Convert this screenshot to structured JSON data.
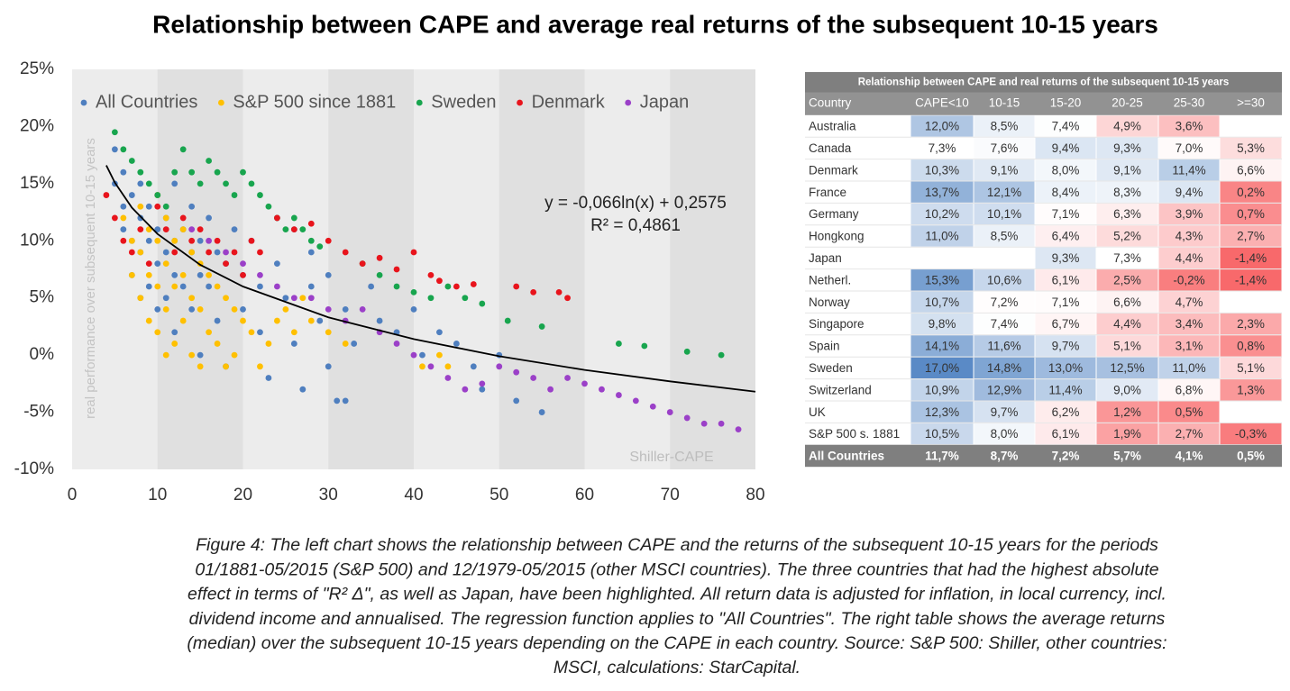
{
  "title": "Relationship between CAPE and average real returns of the subsequent 10-15 years",
  "chart_data": {
    "type": "scatter",
    "ylabel": "real performance over subsequent 10-15 years",
    "xlabel": "Shiller-CAPE",
    "xlim": [
      0,
      80
    ],
    "xticks": [
      0,
      10,
      20,
      30,
      40,
      50,
      60,
      70,
      80
    ],
    "ylim": [
      -10,
      25
    ],
    "yticks": [
      {
        "value": -10,
        "label": "-10%"
      },
      {
        "value": -5,
        "label": "-5%"
      },
      {
        "value": 0,
        "label": "0%"
      },
      {
        "value": 5,
        "label": "5%"
      },
      {
        "value": 10,
        "label": "10%"
      },
      {
        "value": 15,
        "label": "15%"
      },
      {
        "value": 20,
        "label": "20%"
      },
      {
        "value": 25,
        "label": "25%"
      }
    ],
    "grid": false,
    "legend": "top",
    "series": [
      {
        "name": "All Countries",
        "color": "#4f7fbf",
        "x": [
          5,
          5,
          6,
          6,
          6,
          7,
          7,
          7,
          8,
          8,
          8,
          8,
          9,
          9,
          9,
          10,
          10,
          10,
          10,
          11,
          11,
          11,
          12,
          12,
          12,
          12,
          13,
          13,
          14,
          14,
          14,
          15,
          15,
          15,
          16,
          16,
          17,
          17,
          18,
          18,
          19,
          20,
          20,
          21,
          22,
          22,
          23,
          24,
          25,
          26,
          27,
          28,
          29,
          30,
          30,
          31,
          32,
          33,
          35,
          36,
          38,
          40,
          41,
          43,
          45,
          47,
          48,
          50,
          52,
          55,
          32,
          26,
          24,
          28
        ],
        "values": [
          18,
          15,
          16,
          13,
          11,
          14,
          10,
          7,
          15,
          12,
          9,
          5,
          13,
          10,
          6,
          14,
          11,
          8,
          4,
          12,
          9,
          5,
          15,
          10,
          7,
          2,
          11,
          6,
          13,
          9,
          4,
          10,
          7,
          0,
          12,
          6,
          9,
          3,
          8,
          -1,
          11,
          7,
          4,
          10,
          6,
          2,
          -2,
          8,
          5,
          1,
          -3,
          6,
          3,
          7,
          -1,
          -4,
          4,
          1,
          6,
          3,
          2,
          4,
          0,
          2,
          1,
          -1,
          -3,
          0,
          -4,
          -5,
          -4,
          11,
          12,
          9
        ]
      },
      {
        "name": "S&P 500 since 1881",
        "color": "#ffc000",
        "x": [
          6,
          7,
          7,
          8,
          8,
          8,
          9,
          9,
          9,
          10,
          10,
          10,
          10,
          11,
          11,
          11,
          11,
          12,
          12,
          12,
          13,
          13,
          13,
          14,
          14,
          14,
          15,
          15,
          15,
          16,
          16,
          17,
          17,
          18,
          18,
          19,
          19,
          20,
          21,
          22,
          23,
          24,
          25,
          26,
          27,
          28,
          30,
          32,
          41,
          43,
          44
        ],
        "values": [
          12,
          10,
          7,
          13,
          9,
          5,
          11,
          7,
          3,
          14,
          10,
          6,
          2,
          12,
          8,
          4,
          0,
          10,
          6,
          1,
          11,
          7,
          3,
          9,
          5,
          0,
          8,
          4,
          -1,
          7,
          2,
          6,
          1,
          5,
          -1,
          4,
          0,
          3,
          2,
          -1,
          1,
          3,
          4,
          2,
          5,
          3,
          2,
          1,
          -1,
          0,
          -1
        ]
      },
      {
        "name": "Sweden",
        "color": "#18a54e",
        "x": [
          5,
          6,
          7,
          8,
          9,
          10,
          11,
          12,
          13,
          14,
          15,
          16,
          17,
          18,
          19,
          20,
          21,
          22,
          23,
          24,
          25,
          26,
          27,
          28,
          29,
          34,
          36,
          38,
          40,
          42,
          44,
          46,
          48,
          51,
          55,
          64,
          67,
          72,
          76
        ],
        "values": [
          19.5,
          18,
          17,
          16,
          15,
          14,
          13,
          16,
          18,
          16,
          15,
          17,
          16,
          15,
          14,
          16,
          15,
          14,
          13,
          12,
          11,
          12,
          11,
          10,
          9.5,
          8,
          7,
          6,
          5.5,
          5,
          6,
          5,
          4.5,
          3,
          2.5,
          1,
          0.8,
          0.3,
          0
        ]
      },
      {
        "name": "Denmark",
        "color": "#e8141c",
        "x": [
          4,
          5,
          6,
          7,
          8,
          9,
          10,
          11,
          12,
          13,
          14,
          15,
          16,
          17,
          18,
          19,
          20,
          21,
          22,
          24,
          26,
          28,
          30,
          32,
          34,
          36,
          38,
          40,
          42,
          43,
          45,
          47,
          52,
          54,
          57,
          58
        ],
        "values": [
          14,
          12,
          10,
          9,
          11,
          8,
          13,
          11,
          9,
          12,
          10,
          11,
          9,
          10,
          8,
          9,
          7,
          10,
          9,
          12,
          11,
          11.5,
          10,
          9,
          8,
          8.5,
          7.5,
          9,
          7,
          6.5,
          6,
          6.2,
          6,
          5.5,
          5.5,
          5
        ]
      },
      {
        "name": "Japan",
        "color": "#9b40c8",
        "x": [
          14,
          16,
          18,
          20,
          22,
          24,
          26,
          28,
          30,
          32,
          34,
          36,
          38,
          40,
          42,
          44,
          46,
          48,
          50,
          52,
          54,
          56,
          58,
          60,
          62,
          64,
          66,
          68,
          70,
          72,
          74,
          76,
          78
        ],
        "values": [
          11,
          10,
          9,
          8,
          7,
          6,
          5,
          5,
          4,
          3,
          4,
          2,
          1,
          0,
          -1,
          -2,
          -3,
          -2.5,
          -1,
          -1.5,
          -2,
          -3,
          -2,
          -2.5,
          -3,
          -3.5,
          -4,
          -4.5,
          -5,
          -5.5,
          -6,
          -6,
          -6.5
        ]
      }
    ],
    "trendline": {
      "color": "#000000",
      "label": "y = -0,066ln(x) + 0,2575",
      "r2": "R² = 0,4861",
      "x": [
        4,
        5,
        7,
        10,
        15,
        20,
        30,
        40,
        50,
        60,
        70,
        80
      ],
      "values": [
        16.6,
        15.1,
        12.9,
        10.6,
        7.9,
        6.0,
        3.3,
        1.4,
        -0.1,
        -1.3,
        -2.3,
        -3.2
      ]
    }
  },
  "table": {
    "title": "Relationship between CAPE and real returns of the subsequent 10-15 years",
    "header": [
      "Country",
      "CAPE<10",
      "10-15",
      "15-20",
      "20-25",
      "25-30",
      ">=30"
    ],
    "color_scale": [
      "#f8696b",
      "#ffffff",
      "#5a8ac6"
    ],
    "rows": [
      [
        "Australia",
        "12,0%",
        "8,5%",
        "7,4%",
        "4,9%",
        "3,6%",
        null
      ],
      [
        "Canada",
        "7,3%",
        "7,6%",
        "9,4%",
        "9,3%",
        "7,0%",
        "5,3%"
      ],
      [
        "Denmark",
        "10,3%",
        "9,1%",
        "8,0%",
        "9,1%",
        "11,4%",
        "6,6%"
      ],
      [
        "France",
        "13,7%",
        "12,1%",
        "8,4%",
        "8,3%",
        "9,4%",
        "0,2%"
      ],
      [
        "Germany",
        "10,2%",
        "10,1%",
        "7,1%",
        "6,3%",
        "3,9%",
        "0,7%"
      ],
      [
        "Hongkong",
        "11,0%",
        "8,5%",
        "6,4%",
        "5,2%",
        "4,3%",
        "2,7%"
      ],
      [
        "Japan",
        null,
        null,
        "9,3%",
        "7,3%",
        "4,4%",
        "-1,4%"
      ],
      [
        "Netherl.",
        "15,3%",
        "10,6%",
        "6,1%",
        "2,5%",
        "-0,2%",
        "-1,4%"
      ],
      [
        "Norway",
        "10,7%",
        "7,2%",
        "7,1%",
        "6,6%",
        "4,7%",
        null
      ],
      [
        "Singapore",
        "9,8%",
        "7,4%",
        "6,7%",
        "4,4%",
        "3,4%",
        "2,3%"
      ],
      [
        "Spain",
        "14,1%",
        "11,6%",
        "9,7%",
        "5,1%",
        "3,1%",
        "0,8%"
      ],
      [
        "Sweden",
        "17,0%",
        "14,8%",
        "13,0%",
        "12,5%",
        "11,0%",
        "5,1%"
      ],
      [
        "Switzerland",
        "10,9%",
        "12,9%",
        "11,4%",
        "9,0%",
        "6,8%",
        "1,3%"
      ],
      [
        "UK",
        "12,3%",
        "9,7%",
        "6,2%",
        "1,2%",
        "0,5%",
        null
      ],
      [
        "S&P 500 s. 1881",
        "10,5%",
        "8,0%",
        "6,1%",
        "1,9%",
        "2,7%",
        "-0,3%"
      ]
    ],
    "total": [
      "All Countries",
      "11,7%",
      "8,7%",
      "7,2%",
      "5,7%",
      "4,1%",
      "0,5%"
    ]
  },
  "caption": [
    "Figure 4: The left chart shows the relationship between CAPE and the returns of the subsequent 10-15 years for the periods",
    "01/1881-05/2015 (S&P 500) and 12/1979-05/2015 (other MSCI countries). The three countries that had the highest absolute",
    "effect in terms of \"R² Δ\", as well as Japan, have been highlighted. All return data is adjusted for inflation, in local currency, incl.",
    "dividend income and annualised. The regression function applies to \"All Countries\". The right table shows the average returns",
    "(median) over the subsequent 10-15 years depending on the CAPE in each country. Source: S&P 500: Shiller, other countries:",
    "MSCI, calculations: StarCapital."
  ]
}
